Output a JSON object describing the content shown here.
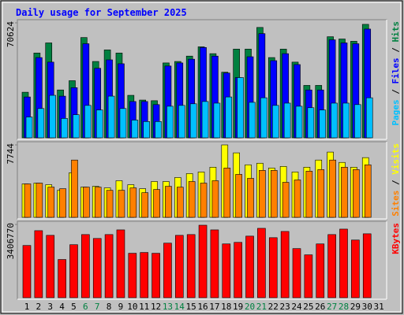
{
  "chart_data": [
    {
      "type": "bar",
      "title": "Daily usage for September 2025",
      "ylim": [
        0,
        70624
      ],
      "yticks": [
        70624
      ],
      "legend_separator": " / ",
      "series": [
        {
          "name": "Hits",
          "color": "#008040",
          "values": [
            28000,
            52100,
            58300,
            29400,
            35100,
            61600,
            46900,
            54000,
            52100,
            26100,
            23200,
            22800,
            46000,
            46900,
            50200,
            55900,
            51700,
            40300,
            54500,
            54500,
            67800,
            49300,
            54500,
            46500,
            32200,
            32200,
            62100,
            60700,
            59300,
            69700,
            null
          ]
        },
        {
          "name": "Files",
          "color": "#0000ff",
          "values": [
            25100,
            49300,
            46500,
            25600,
            30800,
            57800,
            42700,
            47900,
            45500,
            22300,
            22300,
            20400,
            44100,
            46000,
            48300,
            55500,
            50200,
            39800,
            37000,
            49800,
            64000,
            47400,
            51700,
            45000,
            29400,
            29400,
            60200,
            58300,
            57800,
            66800,
            null
          ]
        },
        {
          "name": "Pages",
          "color": "#00c0ff",
          "values": [
            12800,
            18000,
            26100,
            11900,
            14200,
            19900,
            17100,
            25600,
            18000,
            10900,
            10000,
            10000,
            19400,
            19900,
            20900,
            22300,
            21300,
            25100,
            37000,
            21800,
            24600,
            19900,
            21300,
            19400,
            18500,
            17100,
            21300,
            21300,
            20400,
            24600,
            null
          ]
        }
      ]
    },
    {
      "type": "bar",
      "ylim": [
        0,
        7744
      ],
      "yticks": [
        7744
      ],
      "legend_separator": " / ",
      "series": [
        {
          "name": "Visits",
          "color": "#ffff00",
          "values": [
            3574,
            3660,
            3490,
            2893,
            4766,
            3234,
            3319,
            3149,
            3915,
            3490,
            3064,
            3830,
            3830,
            4255,
            4681,
            4851,
            5361,
            7744,
            6893,
            5617,
            5787,
            5276,
            5446,
            4851,
            5361,
            6127,
            6978,
            5872,
            5361,
            6383,
            null
          ]
        },
        {
          "name": "Sites",
          "color": "#ff8000",
          "values": [
            3574,
            3660,
            3234,
            3064,
            6127,
            3234,
            3234,
            2893,
            2893,
            3149,
            2638,
            2979,
            3319,
            3234,
            3830,
            3660,
            3915,
            5276,
            4595,
            4170,
            5021,
            5021,
            3745,
            4000,
            4936,
            5106,
            6127,
            5361,
            5106,
            5617,
            null
          ]
        }
      ]
    },
    {
      "type": "bar",
      "ylim": [
        0,
        3406770
      ],
      "yticks": [
        3406770
      ],
      "legend_separator": " / ",
      "categories": [
        "1",
        "2",
        "3",
        "4",
        "5",
        "6",
        "7",
        "8",
        "9",
        "10",
        "11",
        "12",
        "13",
        "14",
        "15",
        "16",
        "17",
        "18",
        "19",
        "20",
        "21",
        "22",
        "23",
        "24",
        "25",
        "26",
        "27",
        "28",
        "29",
        "30",
        "31"
      ],
      "category_colors": [
        "#000000",
        "#000000",
        "#000000",
        "#000000",
        "#000000",
        "#008040",
        "#008040",
        "#000000",
        "#000000",
        "#000000",
        "#000000",
        "#000000",
        "#008040",
        "#008040",
        "#000000",
        "#000000",
        "#000000",
        "#000000",
        "#000000",
        "#008040",
        "#008040",
        "#000000",
        "#000000",
        "#000000",
        "#000000",
        "#000000",
        "#008040",
        "#008040",
        "#000000",
        "#000000",
        "#000000"
      ],
      "series": [
        {
          "name": "KBytes",
          "color": "#ff0000",
          "values": [
            2428200,
            3116800,
            2899400,
            1775900,
            2464500,
            2935600,
            2754400,
            2935600,
            3153100,
            2065800,
            2102000,
            2065800,
            2536900,
            2899400,
            2935600,
            3370500,
            3153100,
            2500700,
            2573200,
            2863100,
            3225500,
            2790600,
            3080600,
            2283200,
            1993300,
            2500700,
            2935600,
            3189300,
            2681900,
            2971800,
            null
          ]
        }
      ]
    }
  ]
}
